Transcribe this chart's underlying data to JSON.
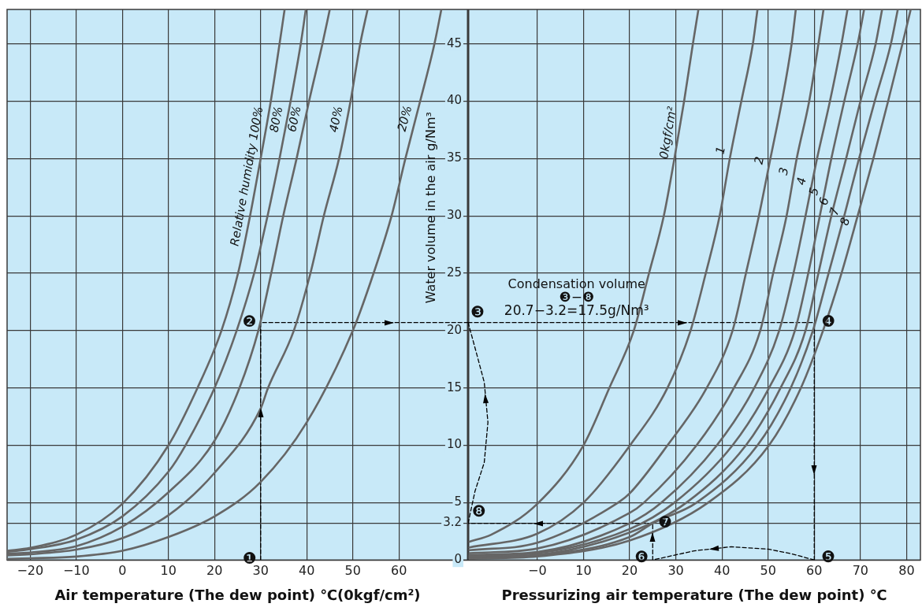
{
  "chart_data": [
    {
      "type": "line",
      "xlabel": "Air temperature (The dew point) ℃(0kgf/cm²)",
      "ylabel": "Water volume in the air g/Nm³",
      "xlim": [
        -25,
        75
      ],
      "xticks": [
        {
          "value": -20,
          "label": "−20"
        },
        {
          "value": -10,
          "label": "−10"
        },
        0,
        10,
        20,
        30,
        40,
        50,
        60
      ],
      "ylim": [
        0,
        48
      ],
      "yticks": [
        0,
        3.2,
        5,
        10,
        15,
        20,
        25,
        30,
        35,
        40,
        45
      ],
      "grid": true,
      "legend": false,
      "marker": "none",
      "line_style": "solid",
      "series": [
        {
          "name": "Relative humidity 100%",
          "color": "#666666",
          "x": [
            -25,
            -20,
            -10,
            0,
            10,
            16.3,
            21.5,
            25.1,
            27.7,
            30,
            32.2,
            34.1,
            35.2
          ],
          "values": [
            0.8,
            1.06,
            2.2,
            4.9,
            10,
            15,
            20,
            25,
            30,
            35,
            40,
            45,
            48
          ]
        },
        {
          "name": "80%",
          "color": "#666666",
          "x": [
            -25,
            -20,
            -10,
            0,
            10,
            13.7,
            20,
            24.8,
            28.6,
            31.5,
            34.1,
            36.5,
            38.7,
            39.8
          ],
          "values": [
            0.7,
            0.94,
            1.77,
            3.8,
            7.7,
            10,
            15,
            20,
            25,
            30,
            35,
            40,
            45,
            48
          ]
        },
        {
          "name": "60%",
          "color": "#666666",
          "x": [
            -25,
            -20,
            -10,
            0,
            10,
            20,
            25.4,
            29.5,
            32.3,
            34.9,
            37.8,
            40.5,
            43.4,
            45
          ],
          "values": [
            0.55,
            0.65,
            1.2,
            2.9,
            5.9,
            10.4,
            15,
            20,
            25,
            30,
            35,
            40,
            45,
            48
          ]
        },
        {
          "name": "40%",
          "color": "#666666",
          "x": [
            -25,
            -20,
            -10,
            0,
            10,
            20,
            30,
            31.6,
            37.2,
            40.8,
            43.7,
            47,
            49.5,
            51.6,
            53.2
          ],
          "values": [
            0.4,
            0.5,
            0.9,
            1.9,
            3.9,
            7.6,
            13.2,
            15,
            20,
            25,
            30,
            35,
            40,
            45,
            48
          ]
        },
        {
          "name": "20%",
          "color": "#666666",
          "x": [
            -25,
            -20,
            -10,
            0,
            10,
            20,
            30,
            40,
            50,
            54.5,
            58.4,
            61.4,
            64.6,
            67.7,
            69.2
          ],
          "values": [
            0.1,
            0.15,
            0.3,
            0.8,
            2,
            3.8,
            6.8,
            12,
            20,
            25,
            30,
            35,
            40,
            45,
            48
          ]
        },
        {
          "color": "#000000",
          "line_style": "dashed",
          "x": [
            30,
            30,
            75
          ],
          "values": [
            0,
            20.7,
            20.7
          ]
        }
      ],
      "annotations": [
        {
          "text": "❶",
          "x": 30,
          "y": 0
        },
        {
          "text": "❷",
          "x": 30,
          "y": 20.7
        }
      ]
    },
    {
      "type": "line",
      "xlabel": "Pressurizing air temperature (The dew point) ℃",
      "xlim": [
        -15,
        83
      ],
      "xticks": [
        {
          "value": 0,
          "label": "−0"
        },
        10,
        20,
        30,
        40,
        50,
        60,
        70,
        80
      ],
      "ylim": [
        0,
        48
      ],
      "yticks": [
        0,
        3.2,
        5,
        10,
        15,
        20,
        25,
        30,
        35,
        40,
        45
      ],
      "tick_labels": "x",
      "grid": true,
      "legend": false,
      "marker": "none",
      "line_style": "solid",
      "series": [
        {
          "name": "0kgf/cm²",
          "color": "#666666",
          "x": [
            -14.7,
            -10,
            0,
            10,
            15.6,
            20.9,
            24.2,
            27.4,
            29.7,
            31.8,
            33.7,
            34.9
          ],
          "values": [
            1.6,
            2.2,
            4.9,
            10,
            15,
            20,
            25,
            30,
            35,
            40,
            45,
            48
          ]
        },
        {
          "name": "1",
          "color": "#666666",
          "x": [
            -14.7,
            0,
            10,
            20.1,
            28.2,
            33.2,
            36.5,
            39.5,
            41.7,
            44.2,
            46.7,
            47.7
          ],
          "values": [
            1.1,
            2.3,
            5,
            10,
            15,
            20,
            25,
            30,
            35,
            40,
            45,
            48
          ]
        },
        {
          "name": "2",
          "color": "#666666",
          "x": [
            -14.7,
            0,
            17.5,
            20,
            28.2,
            36.7,
            42.3,
            45.2,
            48,
            50.5,
            53,
            55.1,
            56
          ],
          "values": [
            0.85,
            1.5,
            5,
            5.8,
            10,
            15,
            20,
            25,
            30,
            35,
            40,
            45,
            48
          ]
        },
        {
          "name": "3",
          "color": "#666666",
          "x": [
            -14.7,
            0,
            20,
            23.1,
            34.5,
            42.6,
            48.3,
            51.1,
            54,
            56.2,
            58.9,
            60.9,
            62
          ],
          "values": [
            0.6,
            1,
            4.1,
            5,
            10,
            15,
            20,
            25,
            30,
            35,
            40,
            45,
            48
          ]
        },
        {
          "name": "4",
          "color": "#666666",
          "x": [
            -14.7,
            0,
            20,
            26.9,
            38.9,
            47,
            52.4,
            55.5,
            58.1,
            60.6,
            63.4,
            65.9,
            67.2
          ],
          "values": [
            0.45,
            0.7,
            3.2,
            5,
            10,
            15,
            20,
            25,
            30,
            35,
            40,
            45,
            48
          ]
        },
        {
          "name": "5",
          "color": "#666666",
          "x": [
            -14.7,
            0,
            20,
            29.7,
            42.3,
            50.2,
            55.8,
            58.7,
            61.2,
            63.7,
            66.5,
            69.4,
            70.8
          ],
          "values": [
            0.35,
            0.6,
            2.7,
            5,
            10,
            15,
            20,
            25,
            30,
            35,
            40,
            45,
            48
          ]
        },
        {
          "name": "6",
          "color": "#666666",
          "x": [
            -14.7,
            0,
            20,
            32.3,
            45.2,
            52.7,
            58.1,
            60.9,
            63.7,
            66.9,
            70,
            73.3,
            74.7
          ],
          "values": [
            0.25,
            0.45,
            2.4,
            5,
            10,
            15,
            20,
            25,
            30,
            35,
            40,
            45,
            48
          ]
        },
        {
          "name": "7",
          "color": "#666666",
          "x": [
            -14.7,
            0,
            20,
            25,
            34.5,
            47.7,
            54.9,
            59.7,
            63.1,
            66.5,
            69.7,
            73.1,
            76.6,
            78.1
          ],
          "values": [
            0.18,
            0.4,
            2,
            3.2,
            5,
            10,
            15,
            20,
            25,
            30,
            35,
            40,
            45,
            48
          ]
        },
        {
          "name": "8",
          "color": "#666666",
          "x": [
            -14.7,
            0,
            20,
            37,
            50.2,
            57.1,
            61.9,
            65.9,
            69.4,
            72.8,
            76,
            79.1,
            80.9
          ],
          "values": [
            0.1,
            0.3,
            1.7,
            5,
            10,
            15,
            20,
            25,
            30,
            35,
            40,
            45,
            48
          ]
        },
        {
          "color": "#000000",
          "line_style": "dashed",
          "x": [
            -15,
            60,
            60
          ],
          "values": [
            20.7,
            20.7,
            0
          ]
        },
        {
          "color": "#000000",
          "line_style": "dashed",
          "x": [
            60,
            55,
            50,
            42,
            34,
            25,
            25,
            -15
          ],
          "values": [
            0,
            0.55,
            0.95,
            1.15,
            0.8,
            0,
            3.2,
            3.2
          ]
        },
        {
          "color": "#000000",
          "line_style": "dashed",
          "x": [
            -15,
            -13.5,
            -11.5,
            -10.7,
            -11.5,
            -13.5,
            -15
          ],
          "values": [
            3.2,
            6,
            8.5,
            12,
            15.5,
            18.5,
            20.7
          ]
        }
      ],
      "annotations": [
        "Condensation volume",
        "❸−❽",
        "20.7−3.2=17.5g/Nm³",
        {
          "text": "❸",
          "x": -15,
          "y": 20.7
        },
        {
          "text": "❹",
          "x": 60,
          "y": 20.7
        },
        {
          "text": "❺",
          "x": 60,
          "y": 0
        },
        {
          "text": "❻",
          "x": 25,
          "y": 0
        },
        {
          "text": "❼",
          "x": 25,
          "y": 3.2
        },
        {
          "text": "❽",
          "x": -15,
          "y": 3.2
        }
      ]
    }
  ]
}
